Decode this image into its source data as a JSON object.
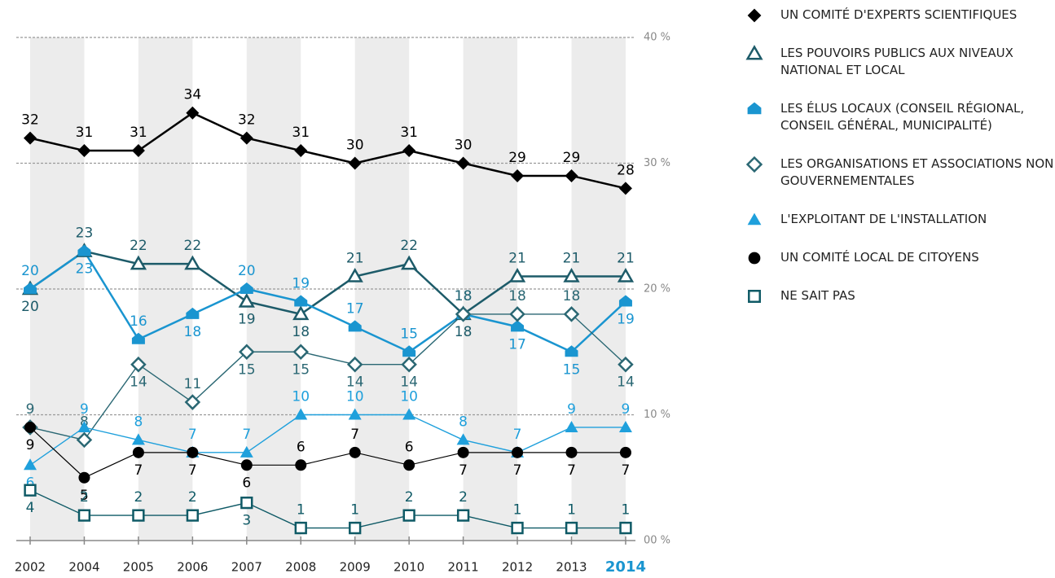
{
  "chart_data": {
    "type": "line",
    "categories": [
      "2002",
      "2004",
      "2005",
      "2006",
      "2007",
      "2008",
      "2009",
      "2010",
      "2011",
      "2012",
      "2013",
      "2014"
    ],
    "ylim": [
      0,
      40
    ],
    "yticks": [
      {
        "value": 0,
        "label": "00 %"
      },
      {
        "value": 10,
        "label": "10 %"
      },
      {
        "value": 20,
        "label": "20 %"
      },
      {
        "value": 30,
        "label": "30 %"
      },
      {
        "value": 40,
        "label": "40 %"
      }
    ],
    "grid": true,
    "series": [
      {
        "name": "UN COMITÉ D'EXPERTS SCIENTIFIQUES",
        "color": "#000000",
        "marker": "diamond-filled",
        "values": [
          32,
          31,
          31,
          34,
          32,
          31,
          30,
          31,
          30,
          29,
          29,
          28
        ]
      },
      {
        "name": "LES POUVOIRS PUBLICS AUX NIVEAUX NATIONAL ET LOCAL",
        "color": "#1d5b69",
        "marker": "triangle-open",
        "values": [
          20,
          23,
          22,
          22,
          19,
          18,
          21,
          22,
          18,
          21,
          21,
          21
        ]
      },
      {
        "name": "LES ÉLUS LOCAUX (CONSEIL RÉGIONAL, CONSEIL GÉNÉRAL, MUNICIPALITÉ)",
        "color": "#1a95d0",
        "marker": "house-filled",
        "values": [
          20,
          23,
          16,
          18,
          20,
          19,
          17,
          15,
          18,
          17,
          15,
          19
        ]
      },
      {
        "name": "LES ORGANISATIONS ET ASSOCIATIONS NON GOUVERNEMENTALES",
        "color": "#2a6773",
        "marker": "diamond-open",
        "values": [
          9,
          8,
          14,
          11,
          15,
          15,
          14,
          14,
          18,
          18,
          18,
          14
        ]
      },
      {
        "name": "L'EXPLOITANT DE L'INSTALLATION",
        "color": "#1fa0dc",
        "marker": "triangle-filled",
        "values": [
          6,
          9,
          8,
          7,
          7,
          10,
          10,
          10,
          8,
          7,
          9,
          9
        ]
      },
      {
        "name": "UN COMITÉ LOCAL DE CITOYENS",
        "color": "#000000",
        "marker": "circle-filled",
        "values": [
          9,
          5,
          7,
          7,
          6,
          6,
          7,
          6,
          7,
          7,
          7,
          7
        ]
      },
      {
        "name": "NE SAIT PAS",
        "color": "#0f5a66",
        "marker": "square-open",
        "values": [
          4,
          2,
          2,
          2,
          3,
          1,
          1,
          2,
          2,
          1,
          1,
          1
        ]
      }
    ]
  }
}
